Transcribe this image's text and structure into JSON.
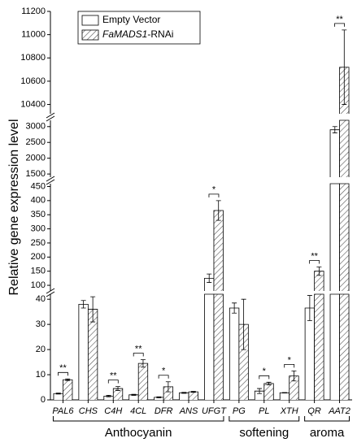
{
  "chart_data": {
    "type": "bar",
    "y_label": "Relative gene expression level",
    "categories": [
      "PAL6",
      "CHS",
      "C4H",
      "4CL",
      "DFR",
      "ANS",
      "UFGT",
      "PG",
      "PL",
      "XTH",
      "QR",
      "AAT2"
    ],
    "series": [
      {
        "name": "Empty Vector",
        "color": "#ffffff",
        "hatch": false,
        "values": [
          2.5,
          38,
          1.5,
          2,
          1,
          2.8,
          125,
          36.5,
          3.5,
          2.8,
          36.5,
          2900
        ],
        "errors": [
          0.2,
          1.5,
          0.3,
          0.2,
          0.2,
          0.2,
          15,
          2,
          1,
          0.1,
          5,
          100
        ]
      },
      {
        "name": "FaMADS1-RNAi",
        "color": "#ffffff",
        "hatch": true,
        "values": [
          8,
          36,
          4.5,
          14.5,
          5.2,
          3.2,
          365,
          30,
          6.5,
          9.5,
          150,
          10720
        ],
        "errors": [
          0.3,
          5,
          0.8,
          1.5,
          2,
          0.2,
          35,
          10,
          0.5,
          2,
          15,
          320
        ]
      }
    ],
    "significance": [
      "**",
      null,
      "**",
      "**",
      "*",
      null,
      "*",
      null,
      "*",
      "*",
      "**",
      "**"
    ],
    "groups": [
      {
        "label": "Anthocyanin",
        "from": "PAL6",
        "to": "UFGT"
      },
      {
        "label": "softening",
        "from": "PG",
        "to": "XTH"
      },
      {
        "label": "aroma",
        "from": "QR",
        "to": "AAT2"
      }
    ],
    "y_segments": [
      {
        "ylim": [
          0,
          42
        ],
        "yticks": [
          0,
          10,
          20,
          30,
          40
        ]
      },
      {
        "ylim": [
          80,
          460
        ],
        "yticks": [
          100,
          150,
          200,
          250,
          300,
          350,
          400,
          450
        ]
      },
      {
        "ylim": [
          1400,
          3200
        ],
        "yticks": [
          1500,
          2000,
          2500,
          3000
        ]
      },
      {
        "ylim": [
          10320,
          11200
        ],
        "yticks": [
          10400,
          10600,
          10800,
          11000,
          11200
        ]
      }
    ],
    "legend": "upper left"
  }
}
